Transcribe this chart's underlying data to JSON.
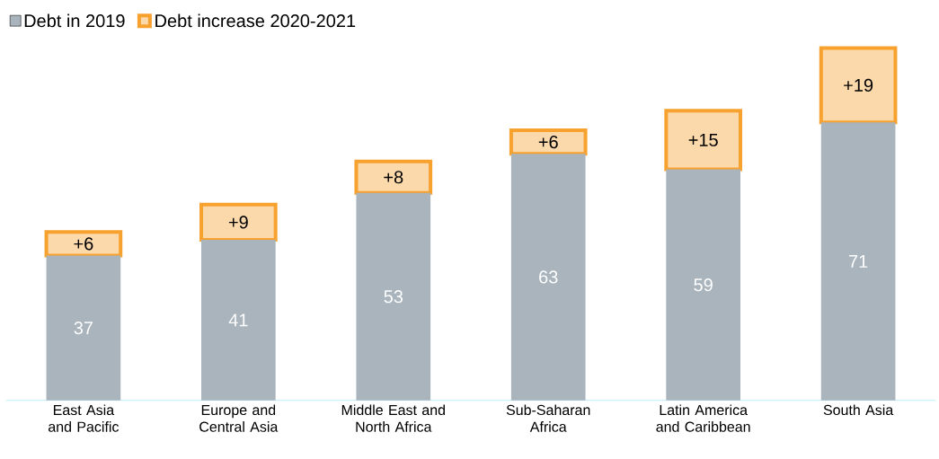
{
  "chart_data": {
    "type": "bar",
    "stacked": true,
    "legend": "top left",
    "categories": [
      "East Asia and Pacific",
      "Europe and Central Asia",
      "Middle East and North Africa",
      "Sub-Saharan Africa",
      "Latin America and Caribbean",
      "South Asia"
    ],
    "series": [
      {
        "name": "Debt in 2019",
        "color": "#a9b4bd",
        "values": [
          37,
          41,
          53,
          63,
          59,
          71
        ],
        "value_labels": [
          "37",
          "41",
          "53",
          "63",
          "59",
          "71"
        ]
      },
      {
        "name": "Debt increase 2020-2021",
        "color": "#f7a12e",
        "values": [
          6,
          9,
          8,
          6,
          15,
          19
        ],
        "value_labels": [
          "+6",
          "+9",
          "+8",
          "+6",
          "+15",
          "+19"
        ]
      }
    ]
  }
}
